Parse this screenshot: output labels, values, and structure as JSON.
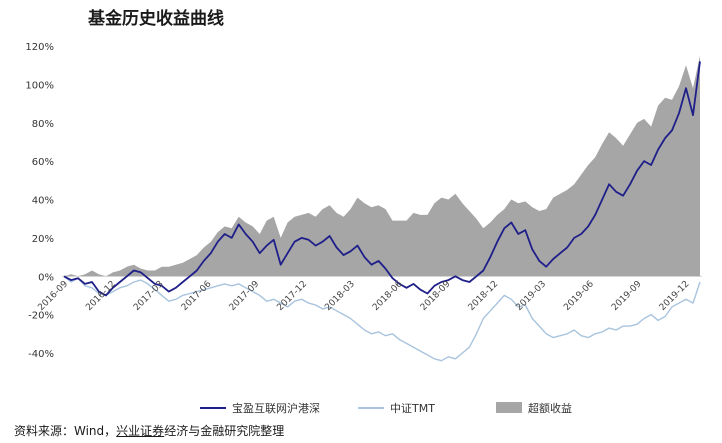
{
  "title": "基金历史收益曲线",
  "source": {
    "prefix": "资料来源：Wind，",
    "org": "兴业证券",
    "suffix": "经济与金融研究院整理"
  },
  "chart_data": {
    "type": "line",
    "title": "基金历史收益曲线",
    "ylim": [
      -40,
      120
    ],
    "y_ticks": [
      "120%",
      "100%",
      "80%",
      "60%",
      "40%",
      "20%",
      "0%",
      "-20%",
      "-40%"
    ],
    "x_ticks": [
      "2016-09",
      "2016-12",
      "2017-03",
      "2017-06",
      "2017-09",
      "2017-12",
      "2018-03",
      "2018-06",
      "2018-09",
      "2018-12",
      "2019-03",
      "2019-06",
      "2019-09",
      "2019-12"
    ],
    "x_start": "2016-09",
    "series": [
      {
        "name": "宝盈互联网沪港深",
        "kind": "line",
        "color": "#1f1f8a",
        "values": [
          0,
          -2,
          -1,
          -4,
          -3,
          -8,
          -10,
          -6,
          -3,
          0,
          3,
          2,
          -1,
          -4,
          -5,
          -8,
          -6,
          -3,
          0,
          3,
          8,
          12,
          18,
          22,
          20,
          27,
          22,
          18,
          12,
          16,
          19,
          6,
          12,
          18,
          20,
          19,
          16,
          18,
          21,
          15,
          11,
          13,
          16,
          10,
          6,
          8,
          4,
          -1,
          -4,
          -6,
          -4,
          -7,
          -9,
          -5,
          -3,
          -2,
          0,
          -2,
          -3,
          0,
          3,
          10,
          18,
          25,
          28,
          22,
          24,
          14,
          8,
          5,
          9,
          12,
          15,
          20,
          22,
          26,
          32,
          40,
          48,
          44,
          42,
          48,
          55,
          60,
          58,
          66,
          72,
          76,
          85,
          98,
          84,
          112
        ]
      },
      {
        "name": "中证TMT",
        "kind": "line",
        "color": "#a9c4de",
        "values": [
          0,
          -3,
          -1,
          -5,
          -6,
          -9,
          -10,
          -8,
          -6,
          -5,
          -3,
          -2,
          -4,
          -7,
          -10,
          -13,
          -12,
          -10,
          -9,
          -8,
          -7,
          -6,
          -5,
          -4,
          -5,
          -4,
          -6,
          -8,
          -10,
          -13,
          -12,
          -14,
          -16,
          -13,
          -12,
          -14,
          -15,
          -17,
          -16,
          -18,
          -20,
          -22,
          -25,
          -28,
          -30,
          -29,
          -31,
          -30,
          -33,
          -35,
          -37,
          -39,
          -41,
          -43,
          -44,
          -42,
          -43,
          -40,
          -37,
          -30,
          -22,
          -18,
          -14,
          -10,
          -12,
          -16,
          -15,
          -22,
          -26,
          -30,
          -32,
          -31,
          -30,
          -28,
          -31,
          -32,
          -30,
          -29,
          -27,
          -28,
          -26,
          -26,
          -25,
          -22,
          -20,
          -23,
          -21,
          -16,
          -14,
          -12,
          -14,
          -3
        ]
      },
      {
        "name": "超额收益",
        "kind": "area",
        "color": "#a6a6a6",
        "values": [
          0,
          1,
          0,
          1,
          3,
          1,
          0,
          2,
          3,
          5,
          6,
          4,
          3,
          3,
          5,
          5,
          6,
          7,
          9,
          11,
          15,
          18,
          23,
          26,
          25,
          31,
          28,
          26,
          22,
          29,
          31,
          20,
          28,
          31,
          32,
          33,
          31,
          35,
          37,
          33,
          31,
          35,
          41,
          38,
          36,
          37,
          35,
          29,
          29,
          29,
          33,
          32,
          32,
          38,
          41,
          40,
          43,
          38,
          34,
          30,
          25,
          28,
          32,
          35,
          40,
          38,
          39,
          36,
          34,
          35,
          41,
          43,
          45,
          48,
          53,
          58,
          62,
          69,
          75,
          72,
          68,
          74,
          80,
          82,
          78,
          89,
          93,
          92,
          99,
          110,
          98,
          115
        ]
      }
    ]
  }
}
